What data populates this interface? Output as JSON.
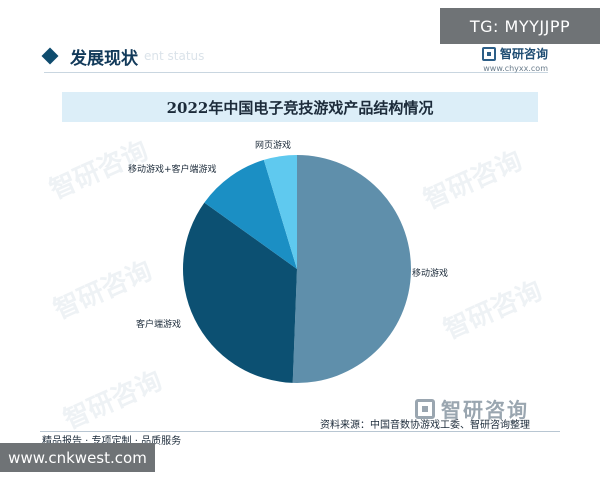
{
  "overlay": {
    "telegram_tag": "TG: MYYJJPP",
    "site": "www.cnkwest.com"
  },
  "header": {
    "section_title": "发展现状",
    "section_subtitle": "ent status",
    "brand_name": "智研咨询",
    "brand_url": "www.chyxx.com"
  },
  "watermark_text": "智研咨询",
  "bottom_brand": "智研咨询",
  "footer": {
    "source": "资料来源：中国音数协游戏工委、智研咨询整理",
    "left_text": "精品报告 · 专项定制 · 品质服务"
  },
  "colors": {
    "mobile": "#5f8fab",
    "client": "#0c5072",
    "mobile_client": "#1b8fc4",
    "web": "#5fc9ef"
  },
  "chart_data": {
    "type": "pie",
    "title": "2022年中国电子竞技游戏产品结构情况",
    "slices": [
      {
        "label": "移动游戏",
        "value": 50.6,
        "color_key": "mobile"
      },
      {
        "label": "客户端游戏",
        "value": 34.3,
        "color_key": "client"
      },
      {
        "label": "移动游戏+客户端游戏",
        "value": 10.4,
        "color_key": "mobile_client"
      },
      {
        "label": "网页游戏",
        "value": 4.7,
        "color_key": "web"
      }
    ],
    "start": "12 o'clock",
    "direction": "clockwise"
  }
}
